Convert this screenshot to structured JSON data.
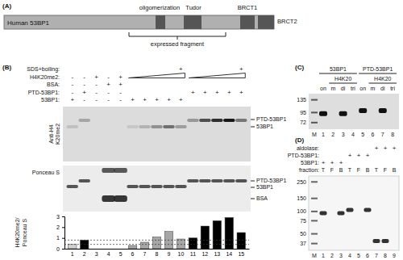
{
  "panel_a": {
    "label": "(A)",
    "protein": "Human 53BP1",
    "domains": [
      "oligomerization",
      "Tudor",
      "BRCT1",
      "BRCT2"
    ],
    "fragment": "expressed fragment"
  },
  "panel_b": {
    "label": "(B)",
    "symbols": {
      "plus": "+",
      "minus": "-"
    },
    "rows": [
      {
        "label": "SDS+boiling:",
        "plus": [
          10,
          15
        ]
      },
      {
        "label": "H4K20me2:",
        "plus": [
          3,
          5
        ],
        "minus": [
          1,
          2,
          4
        ]
      },
      {
        "label": "BSA:",
        "plus": [
          4,
          5
        ],
        "minus": [
          1,
          2,
          3
        ]
      },
      {
        "label": "PTD-53BP1:",
        "plus": [
          2,
          11,
          12,
          13,
          14,
          15
        ],
        "minus": [
          1,
          3,
          4,
          5
        ]
      },
      {
        "label": "53BP1:",
        "plus": [
          1,
          6,
          7,
          8,
          9,
          10
        ],
        "minus": [
          2,
          3,
          4,
          5
        ]
      }
    ],
    "ramps": [
      [
        6,
        10
      ],
      [
        11,
        15
      ]
    ],
    "ramp_row": 1,
    "blot_label": [
      "Anti-H4",
      "K20me2"
    ],
    "blot_bands": [
      "PTD-53BP1",
      "53BP1"
    ],
    "ponceau_label": "Ponceau S",
    "ponceau_bands": [
      "PTD-53BP1",
      "53BP1",
      "BSA"
    ]
  },
  "chart_data": {
    "type": "bar",
    "categories": [
      "1",
      "2",
      "3",
      "4",
      "5",
      "6",
      "7",
      "8",
      "9",
      "10",
      "11",
      "12",
      "13",
      "14",
      "15"
    ],
    "values": [
      0.4,
      0.8,
      0,
      0,
      0,
      0.3,
      0.6,
      1.1,
      1.6,
      0.9,
      1.0,
      2.1,
      2.6,
      2.9,
      1.5
    ],
    "colors": [
      "#d0d0d0",
      "#000000",
      "#a6a6a6",
      "#a6a6a6",
      "#a6a6a6",
      "#a6a6a6",
      "#a6a6a6",
      "#a6a6a6",
      "#a6a6a6",
      "#a6a6a6",
      "#000000",
      "#000000",
      "#000000",
      "#000000",
      "#000000"
    ],
    "y_label": [
      "H4K20me2/",
      "Ponceau S"
    ],
    "reference_lines": [
      0.4,
      0.8
    ],
    "ylim": [
      0,
      3
    ],
    "yticks": [
      0,
      1,
      2,
      3
    ]
  },
  "panel_c": {
    "label": "(C)",
    "groups": [
      {
        "label": "53BP1",
        "lanes": [
          1,
          4
        ]
      },
      {
        "label": "PTD-53BP1",
        "lanes": [
          5,
          8
        ]
      }
    ],
    "sublabel": "H4K20",
    "sublabel_lanes": [
      [
        2,
        4
      ],
      [
        6,
        8
      ]
    ],
    "lane_labels": [
      "on",
      "m",
      "di",
      "tri",
      "on",
      "m",
      "di",
      "tri"
    ],
    "marker_lane": "M",
    "lanes": [
      1,
      2,
      3,
      4,
      5,
      6,
      7,
      8
    ],
    "markers": [
      135,
      95,
      72
    ],
    "ylim": [
      160,
      60
    ],
    "bands": [
      {
        "lane": 1,
        "kda": 92
      },
      {
        "lane": 3,
        "kda": 92
      },
      {
        "lane": 5,
        "kda": 100
      },
      {
        "lane": 7,
        "kda": 100
      }
    ]
  },
  "panel_d": {
    "label": "(D)",
    "rows": [
      {
        "label": "aldolase:",
        "plus": [
          7,
          8,
          9
        ]
      },
      {
        "label": "PTD-53BP1:",
        "plus": [
          4,
          5,
          6
        ]
      },
      {
        "label": "53BP1:",
        "plus": [
          1,
          2,
          3
        ]
      },
      {
        "label": "fraction:",
        "texts": [
          "T",
          "F",
          "B",
          "T",
          "F",
          "B",
          "T",
          "F",
          "B"
        ]
      }
    ],
    "plus": "+",
    "marker_lane": "M",
    "lanes": [
      1,
      2,
      3,
      4,
      5,
      6,
      7,
      8,
      9
    ],
    "markers": [
      250,
      150,
      100,
      75,
      50,
      37
    ],
    "ylim": [
      300,
      30
    ],
    "bands": [
      {
        "lane": 1,
        "kda": 95
      },
      {
        "lane": 3,
        "kda": 95
      },
      {
        "lane": 4,
        "kda": 105
      },
      {
        "lane": 6,
        "kda": 105
      },
      {
        "lane": 7,
        "kda": 40
      },
      {
        "lane": 8,
        "kda": 40
      }
    ]
  }
}
